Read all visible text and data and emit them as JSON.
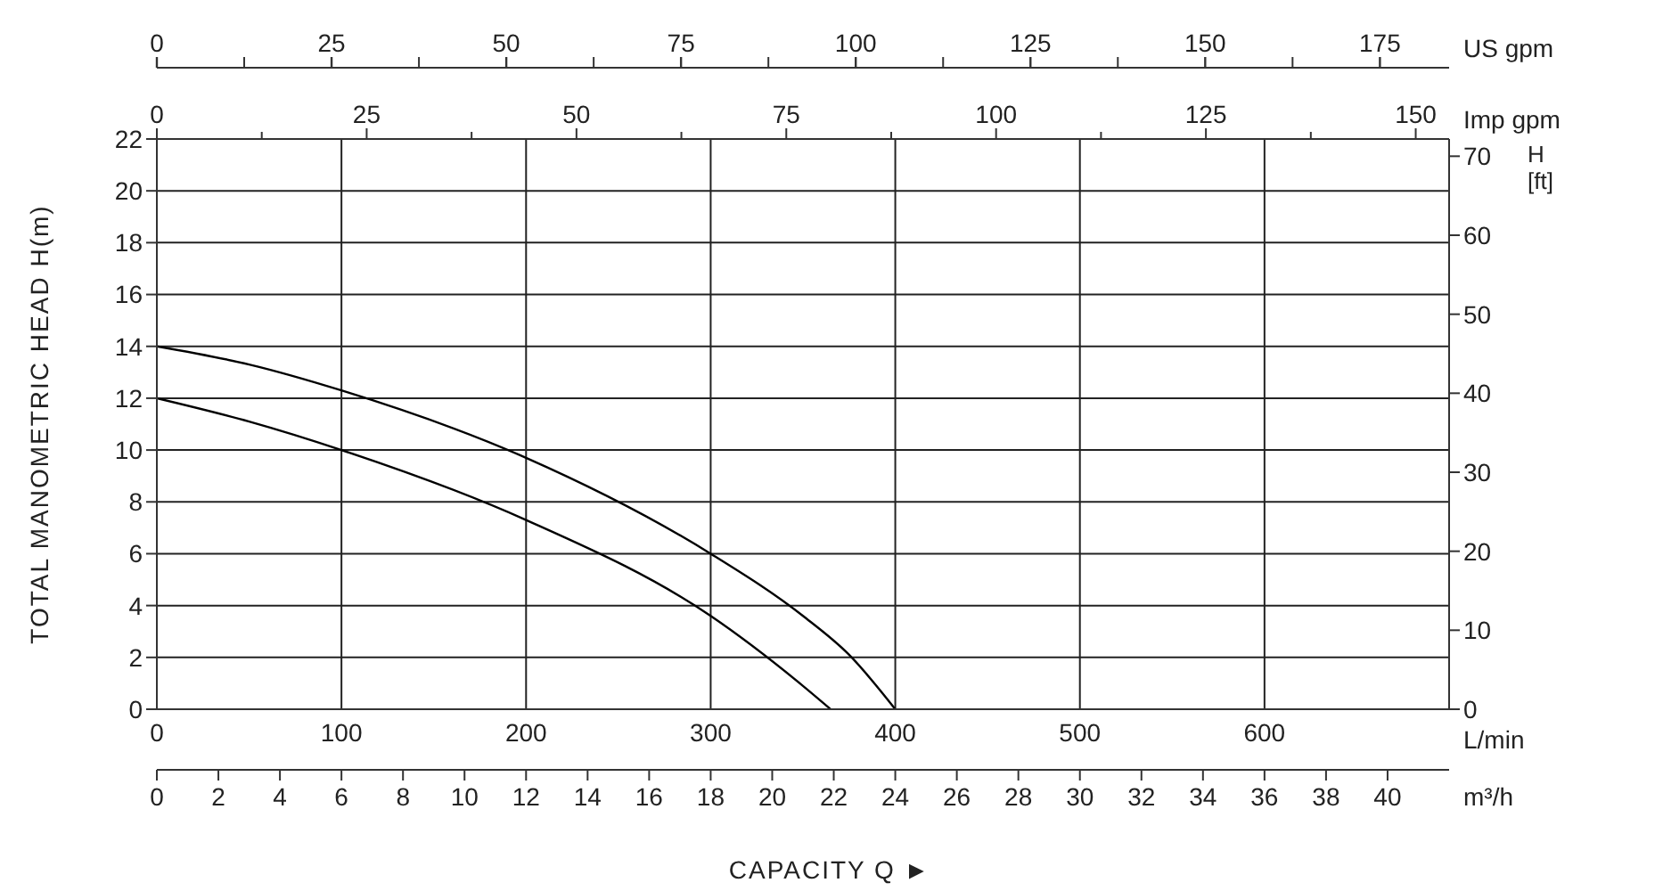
{
  "chart_data": {
    "type": "line",
    "xlabel": "L/min",
    "ylabel": "TOTAL MANOMETRIC HEAD H(m)",
    "y2label": "H\n[ft]",
    "x2label": "US gpm",
    "annotations": [
      "CAPACITY Q ►",
      "Imp gpm",
      "0",
      "25",
      "50",
      "75",
      "100",
      "125",
      "150",
      "m³/h",
      "0",
      "2",
      "4",
      "6",
      "8",
      "10",
      "12",
      "14",
      "16",
      "18",
      "20",
      "22",
      "24",
      "26",
      "28",
      "30",
      "32",
      "34",
      "36",
      "38",
      "40"
    ],
    "xlim": [
      0,
      700
    ],
    "xticks": [
      0,
      100,
      200,
      300,
      400,
      500,
      600
    ],
    "ylim": [
      0,
      22
    ],
    "yticks": [
      0,
      2,
      4,
      6,
      8,
      10,
      12,
      14,
      16,
      18,
      20,
      22
    ],
    "y2lim": [
      0,
      72.18
    ],
    "y2ticks": [
      0,
      10,
      20,
      30,
      40,
      50,
      60,
      70
    ],
    "x2lim": [
      0,
      184.9
    ],
    "x2ticks": [
      0,
      25,
      50,
      75,
      100,
      125,
      150,
      175
    ],
    "grid": true,
    "line_style": "solid",
    "marker": "none",
    "series": [
      {
        "color": "#000000",
        "x": [
          0,
          50,
          100,
          200,
          300,
          350,
          375,
          400
        ],
        "values": [
          14,
          13.3,
          12.3,
          9.7,
          6.0,
          3.6,
          2.1,
          0
        ]
      },
      {
        "color": "#000000",
        "x": [
          0,
          50,
          100,
          200,
          300,
          350,
          365
        ],
        "values": [
          12,
          11.1,
          10.0,
          7.3,
          3.6,
          0.9,
          0
        ]
      }
    ]
  }
}
